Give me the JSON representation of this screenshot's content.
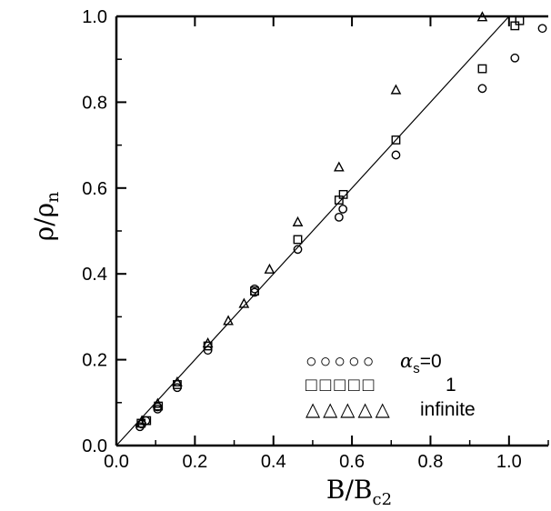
{
  "chart_data": {
    "type": "scatter",
    "title": "",
    "xlabel": "B/Bc2",
    "ylabel": "ρ/ρn",
    "xlim": [
      0.0,
      1.1
    ],
    "ylim": [
      0.0,
      1.0
    ],
    "x_ticks": [
      "0.0",
      "0.2",
      "0.4",
      "0.6",
      "0.8",
      "1.0"
    ],
    "y_ticks": [
      "0.0",
      "0.2",
      "0.4",
      "0.6",
      "0.8",
      "1.0"
    ],
    "grid": false,
    "reference_line": {
      "from": [
        0.0,
        0.0
      ],
      "to": [
        1.0,
        1.0
      ]
    },
    "legend_position": "bottom-right",
    "legend": {
      "circle": {
        "symbols": "○○○○○",
        "label_prefix": "α",
        "label_sub": "s",
        "label_suffix": "=0"
      },
      "square": {
        "symbols": "□□□□□",
        "label": "1"
      },
      "triangle": {
        "symbols": "△△△△△",
        "label": "infinite"
      }
    },
    "series": [
      {
        "marker": "circle",
        "points": [
          [
            0.06,
            0.044
          ],
          [
            0.065,
            0.05
          ],
          [
            0.075,
            0.058
          ],
          [
            0.105,
            0.085
          ],
          [
            0.105,
            0.09
          ],
          [
            0.155,
            0.135
          ],
          [
            0.233,
            0.222
          ],
          [
            0.352,
            0.357
          ],
          [
            0.352,
            0.365
          ],
          [
            0.462,
            0.457
          ],
          [
            0.567,
            0.532
          ],
          [
            0.577,
            0.551
          ],
          [
            0.712,
            0.677
          ],
          [
            0.932,
            0.832
          ],
          [
            1.015,
            0.903
          ],
          [
            1.085,
            0.972
          ]
        ]
      },
      {
        "marker": "square",
        "points": [
          [
            0.063,
            0.052
          ],
          [
            0.077,
            0.058
          ],
          [
            0.107,
            0.092
          ],
          [
            0.155,
            0.142
          ],
          [
            0.233,
            0.232
          ],
          [
            0.352,
            0.36
          ],
          [
            0.462,
            0.48
          ],
          [
            0.567,
            0.572
          ],
          [
            0.578,
            0.585
          ],
          [
            0.712,
            0.712
          ],
          [
            0.932,
            0.878
          ],
          [
            1.015,
            0.978
          ],
          [
            1.027,
            0.99
          ]
        ]
      },
      {
        "marker": "triangle",
        "points": [
          [
            0.065,
            0.057
          ],
          [
            0.105,
            0.097
          ],
          [
            0.155,
            0.147
          ],
          [
            0.233,
            0.238
          ],
          [
            0.285,
            0.29
          ],
          [
            0.325,
            0.33
          ],
          [
            0.39,
            0.41
          ],
          [
            0.462,
            0.52
          ],
          [
            0.567,
            0.648
          ],
          [
            0.712,
            0.828
          ],
          [
            0.932,
            0.998
          ]
        ]
      }
    ]
  }
}
